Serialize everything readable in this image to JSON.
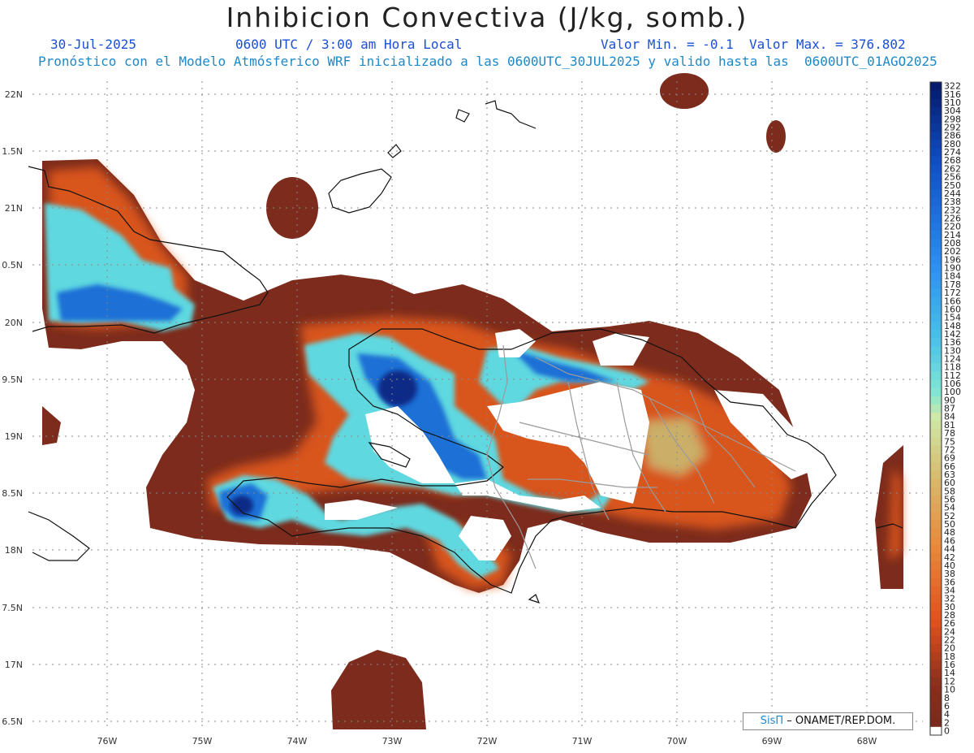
{
  "header": {
    "title": "Inhibicion Convectiva (J/kg, somb.)",
    "date": "30-Jul-2025",
    "time": "0600 UTC / 3:00 am Hora Local",
    "minmax": "Valor Min. = -0.1  Valor Max. = 376.802",
    "forecast": "Pronóstico con el Modelo Atmósferico WRF inicializado a las 0600UTC_30JUL2025 y valido hasta las  0600UTC_01AGO2025"
  },
  "axes": {
    "lat_labels": [
      "22N",
      "1.5N",
      "21N",
      "0.5N",
      "20N",
      "9.5N",
      "19N",
      "8.5N",
      "18N",
      "7.5N",
      "17N",
      "6.5N"
    ],
    "lon_labels": [
      "76W",
      "75W",
      "74W",
      "73W",
      "72W",
      "71W",
      "70W",
      "69W",
      "68W"
    ]
  },
  "colorbar": {
    "labels": [
      "322",
      "316",
      "310",
      "304",
      "298",
      "292",
      "286",
      "280",
      "274",
      "268",
      "262",
      "256",
      "250",
      "244",
      "238",
      "232",
      "226",
      "220",
      "214",
      "208",
      "202",
      "196",
      "190",
      "184",
      "178",
      "172",
      "166",
      "160",
      "154",
      "148",
      "142",
      "136",
      "130",
      "124",
      "118",
      "112",
      "106",
      "100",
      "90",
      "87",
      "84",
      "81",
      "78",
      "75",
      "72",
      "69",
      "66",
      "63",
      "60",
      "58",
      "56",
      "54",
      "52",
      "50",
      "48",
      "46",
      "44",
      "42",
      "40",
      "38",
      "36",
      "34",
      "32",
      "30",
      "28",
      "26",
      "24",
      "22",
      "20",
      "18",
      "16",
      "14",
      "12",
      "10",
      "8",
      "6",
      "4",
      "2",
      "0"
    ]
  },
  "credit": {
    "brand": "SisΠ",
    "text": "– ONAMET/REP.DOM."
  },
  "colors": {
    "low": "#7a2a1c",
    "orange": "#e0621a",
    "mid": "#c8c87a",
    "cyan": "#6fe3d8",
    "blue": "#1f6fd8",
    "dark": "#0a1f78"
  }
}
